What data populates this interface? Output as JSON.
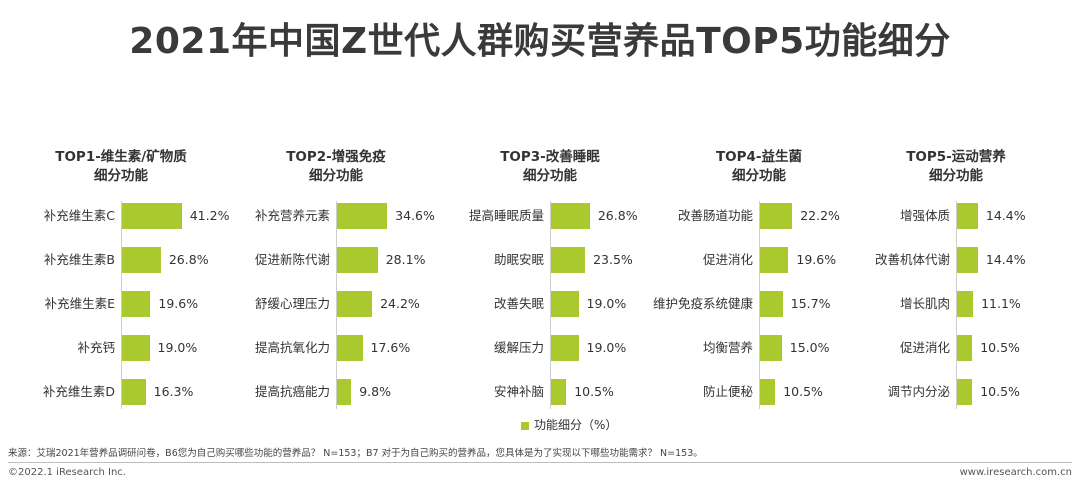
{
  "title": "2021年中国Z世代人群购买营养品TOP5功能细分",
  "colors": {
    "bar": "#a9c92f",
    "axis": "#cfcfcf",
    "text": "#333333"
  },
  "legend": {
    "label": "功能细分（%）"
  },
  "source": "来源：艾瑞2021年营养品调研问卷，B6您为自己购买哪些功能的营养品？ N=153；B7 对于为自己购买的营养品，您具体是为了实现以下哪些功能需求？ N=153。",
  "footer": {
    "left": "©2022.1 iResearch Inc.",
    "right": "www.iresearch.com.cn"
  },
  "chart_data": [
    {
      "type": "bar",
      "orientation": "horizontal",
      "title_line1": "TOP1-维生素/矿物质",
      "title_line2": "细分功能",
      "categories": [
        "补充维生素C",
        "补充维生素B",
        "补充维生素E",
        "补充钙",
        "补充维生素D"
      ],
      "values": [
        41.2,
        26.8,
        19.6,
        19.0,
        16.3
      ],
      "labels": [
        "41.2%",
        "26.8%",
        "19.6%",
        "19.0%",
        "16.3%"
      ]
    },
    {
      "type": "bar",
      "orientation": "horizontal",
      "title_line1": "TOP2-增强免疫",
      "title_line2": "细分功能",
      "categories": [
        "补充营养元素",
        "促进新陈代谢",
        "舒缓心理压力",
        "提高抗氧化力",
        "提高抗癌能力"
      ],
      "values": [
        34.6,
        28.1,
        24.2,
        17.6,
        9.8
      ],
      "labels": [
        "34.6%",
        "28.1%",
        "24.2%",
        "17.6%",
        "9.8%"
      ]
    },
    {
      "type": "bar",
      "orientation": "horizontal",
      "title_line1": "TOP3-改善睡眠",
      "title_line2": "细分功能",
      "categories": [
        "提高睡眠质量",
        "助眠安眠",
        "改善失眠",
        "缓解压力",
        "安神补脑"
      ],
      "values": [
        26.8,
        23.5,
        19.0,
        19.0,
        10.5
      ],
      "labels": [
        "26.8%",
        "23.5%",
        "19.0%",
        "19.0%",
        "10.5%"
      ]
    },
    {
      "type": "bar",
      "orientation": "horizontal",
      "title_line1": "TOP4-益生菌",
      "title_line2": "细分功能",
      "categories": [
        "改善肠道功能",
        "促进消化",
        "维护免疫系统健康",
        "均衡营养",
        "防止便秘"
      ],
      "values": [
        22.2,
        19.6,
        15.7,
        15.0,
        10.5
      ],
      "labels": [
        "22.2%",
        "19.6%",
        "15.7%",
        "15.0%",
        "10.5%"
      ]
    },
    {
      "type": "bar",
      "orientation": "horizontal",
      "title_line1": "TOP5-运动营养",
      "title_line2": "细分功能",
      "categories": [
        "增强体质",
        "改善机体代谢",
        "增长肌肉",
        "促进消化",
        "调节内分泌"
      ],
      "values": [
        14.4,
        14.4,
        11.1,
        10.5,
        10.5
      ],
      "labels": [
        "14.4%",
        "14.4%",
        "11.1%",
        "10.5%",
        "10.5%"
      ]
    }
  ]
}
